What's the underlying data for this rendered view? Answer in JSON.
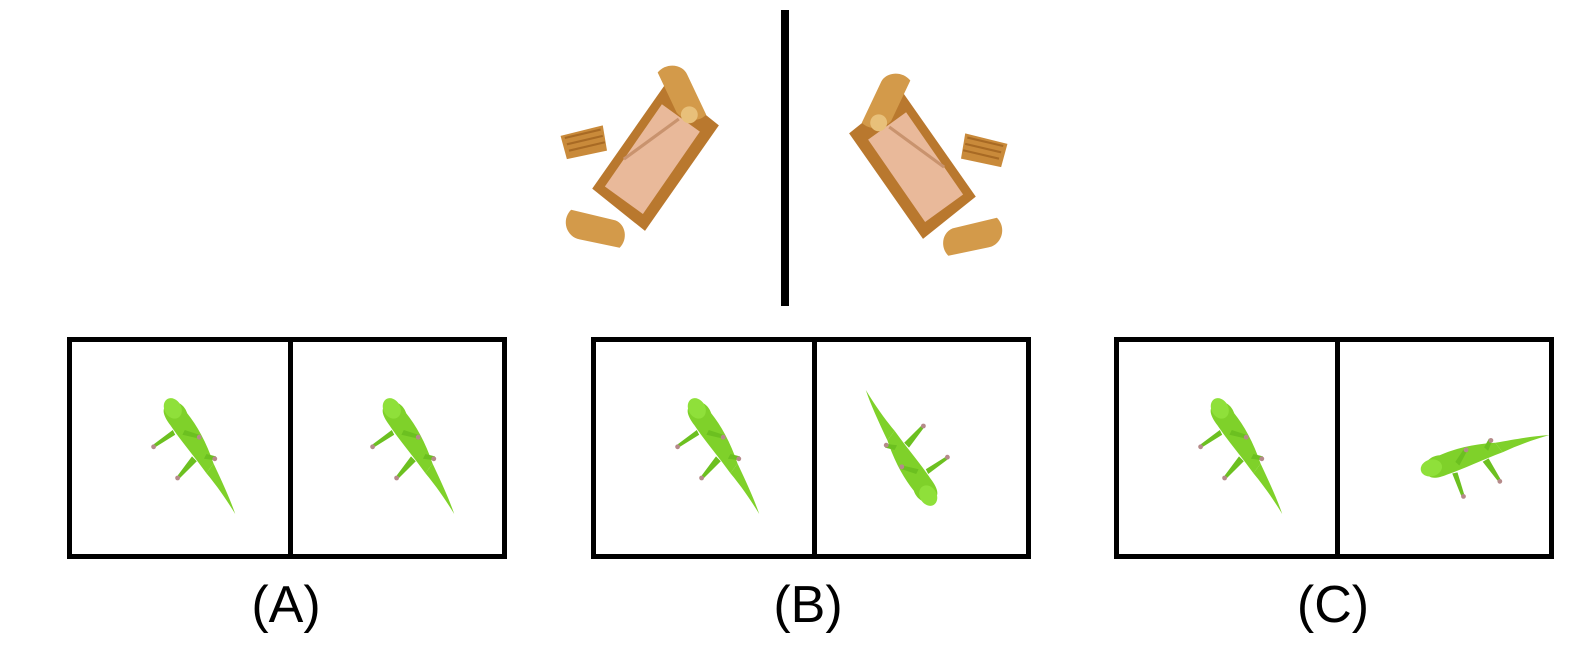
{
  "reference": {
    "object": "sofa",
    "left_view": "sofa-original",
    "right_view": "sofa-mirrored"
  },
  "options": [
    {
      "label": "(A)",
      "left": "gecko",
      "right": "gecko"
    },
    {
      "label": "(B)",
      "left": "gecko",
      "right": "gecko"
    },
    {
      "label": "(C)",
      "left": "gecko",
      "right": "gecko"
    }
  ],
  "colors": {
    "gecko": "#7fd12a",
    "gecko_dark": "#5aa81a",
    "sofa_wood": "#c98a3a",
    "sofa_cushion": "#e9b99a",
    "border": "#000000"
  }
}
